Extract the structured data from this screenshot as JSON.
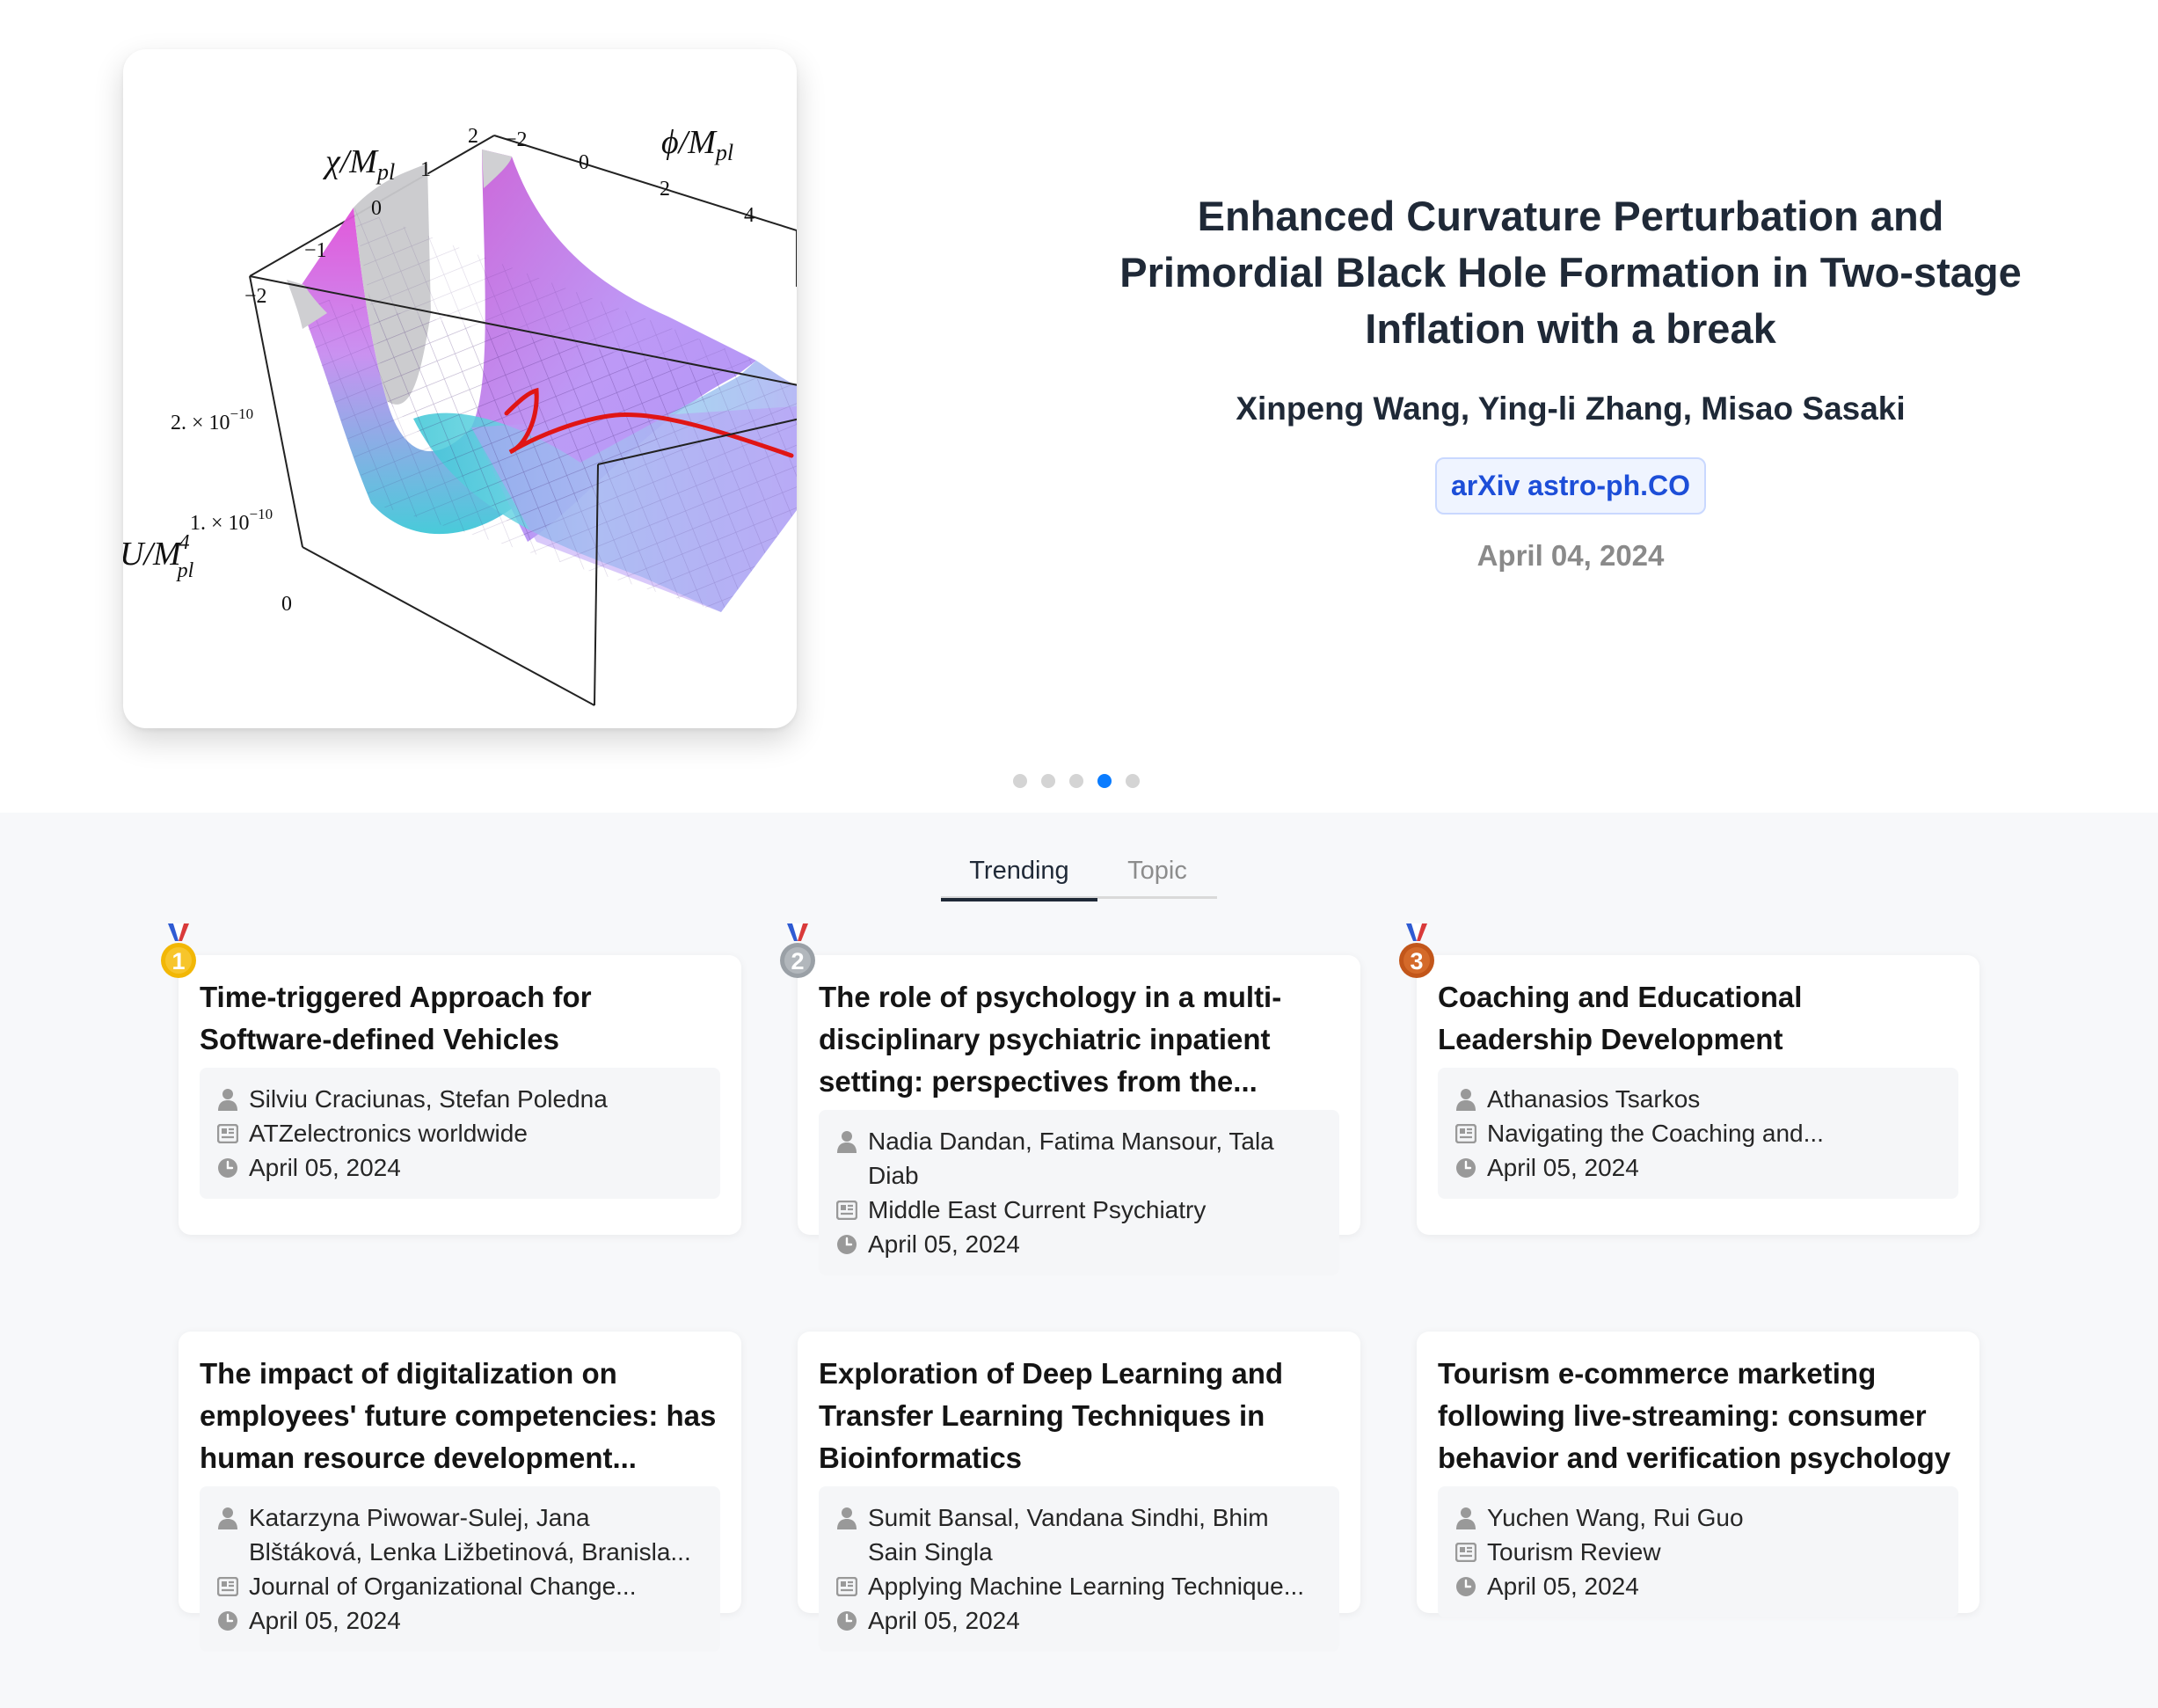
{
  "hero": {
    "title": "Enhanced Curvature Perturbation and Primordial Black Hole Formation in Two-stage Inflation with a break",
    "authors": "Xinpeng Wang, Ying-li Zhang, Misao Sasaki",
    "badge": "arXiv astro-ph.CO",
    "date": "April 04, 2024",
    "figure": {
      "y_axis_label": "χ/M",
      "y_axis_sub": "pl",
      "x_axis_label": "ϕ/M",
      "x_axis_sub": "pl",
      "z_axis_label": "U/M",
      "z_axis_sup": "4",
      "z_axis_sub": "pl",
      "chi_ticks": [
        "2",
        "1",
        "0",
        "−1",
        "−2"
      ],
      "phi_ticks": [
        "−2",
        "0",
        "2",
        "4"
      ],
      "z_tick_high": "2. × 10",
      "z_tick_high_exp": "−10",
      "z_tick_mid": "1. × 10",
      "z_tick_mid_exp": "−10",
      "z_tick_zero": "0"
    },
    "carousel": {
      "count": 5,
      "active_index": 3
    }
  },
  "tabs": [
    "Trending",
    "Topic"
  ],
  "active_tab": "Trending",
  "medal_numbers": [
    "1",
    "2",
    "3"
  ],
  "cards": [
    {
      "title": "Time-triggered Approach for Software-defined Vehicles",
      "authors": "Silviu Craciunas, Stefan Poledna",
      "venue": "ATZelectronics worldwide",
      "date": "April 05, 2024"
    },
    {
      "title": "The role of psychology in a multi-disciplinary psychiatric inpatient setting: perspectives from the...",
      "authors": "Nadia Dandan, Fatima Mansour, Tala Diab",
      "venue": "Middle East Current Psychiatry",
      "date": "April 05, 2024"
    },
    {
      "title": "Coaching and Educational Leadership Development",
      "authors": "Athanasios Tsarkos",
      "venue": "Navigating the Coaching and...",
      "date": "April 05, 2024"
    },
    {
      "title": "The impact of digitalization on employees' future competencies: has human resource development...",
      "authors": "Katarzyna Piwowar-Sulej, Jana Blštáková, Lenka Ližbetinová, Branisla...",
      "venue": "Journal of Organizational Change...",
      "date": "April 05, 2024"
    },
    {
      "title": "Exploration of Deep Learning and Transfer Learning Techniques in Bioinformatics",
      "authors": "Sumit Bansal, Vandana Sindhi, Bhim Sain Singla",
      "venue": "Applying Machine Learning Technique...",
      "date": "April 05, 2024"
    },
    {
      "title": "Tourism e-commerce marketing following live-streaming: consumer behavior and verification psychology",
      "authors": "Yuchen Wang, Rui Guo",
      "venue": "Tourism Review",
      "date": "April 05, 2024"
    }
  ],
  "colors": {
    "accent_blue": "#0a7cff",
    "badge_text": "#1d4ed8",
    "medal_gold": "#f2b705",
    "medal_silver": "#9aa0a6",
    "medal_bronze": "#c2561a"
  }
}
